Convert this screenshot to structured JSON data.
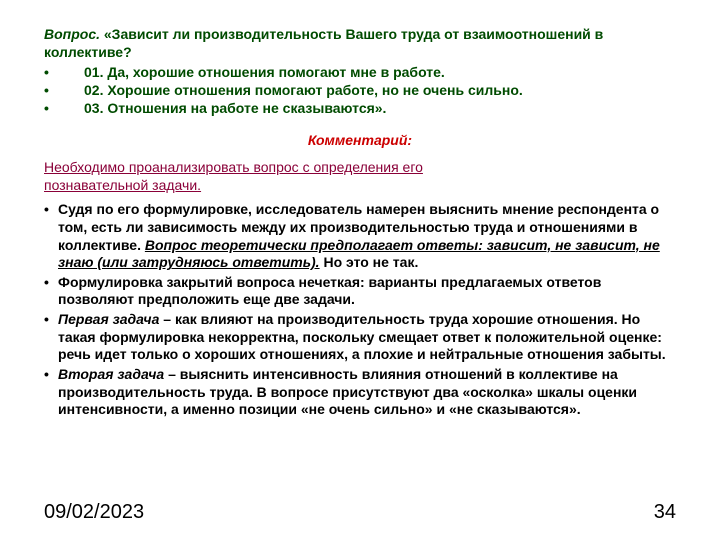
{
  "question": {
    "lead": "Вопрос.",
    "text": " «Зависит ли производительность Вашего труда от взаимоотношений в коллективе?",
    "options": [
      "01. Да, хорошие отношения помогают мне в работе.",
      "02. Хорошие отношения помогают работе, но не очень сильно.",
      "03. Отношения на работе не сказываются»."
    ]
  },
  "comment_title": "Комментарий:",
  "intro": {
    "line1": "Необходимо проанализировать вопрос с определения его",
    "line2": "познавательной задачи",
    "dot": "."
  },
  "analysis": {
    "p1_a": "Судя по его формулировке, исследователь намерен выяснить мнение респондента о том, есть ли зависимость между их производительностью труда и  отношениями в коллективе. ",
    "p1_b": "Вопрос теоретически предполагает ответы: зависит,  не зависит, не знаю (или затрудняюсь ответить).",
    "p1_c": " Но это не так.",
    "p2": "Формулировка закрытий вопроса нечеткая: варианты предлагаемых ответов позволяют предположить еще две задачи.",
    "p3_a": "Первая задача",
    "p3_b": " – как влияют на производительность труда хорошие отношения. Но такая формулировка некорректна, поскольку смещает ответ к положительной оценке: речь идет только о хороших отношениях, а плохие и нейтральные отношения забыты.",
    "p4_a": "Вторая задача",
    "p4_b": " – выяснить интенсивность влияния отношений в коллективе на производительность труда. В вопросе присутствуют два «осколка» шкалы оценки интенсивности, а именно позиции «не очень сильно» и «не сказываются»."
  },
  "footer": {
    "date": "09/02/2023",
    "page": "34"
  },
  "colors": {
    "question": "#004b00",
    "comment": "#cc0000",
    "intro": "#8a0038",
    "body": "#000000",
    "background": "#ffffff"
  }
}
